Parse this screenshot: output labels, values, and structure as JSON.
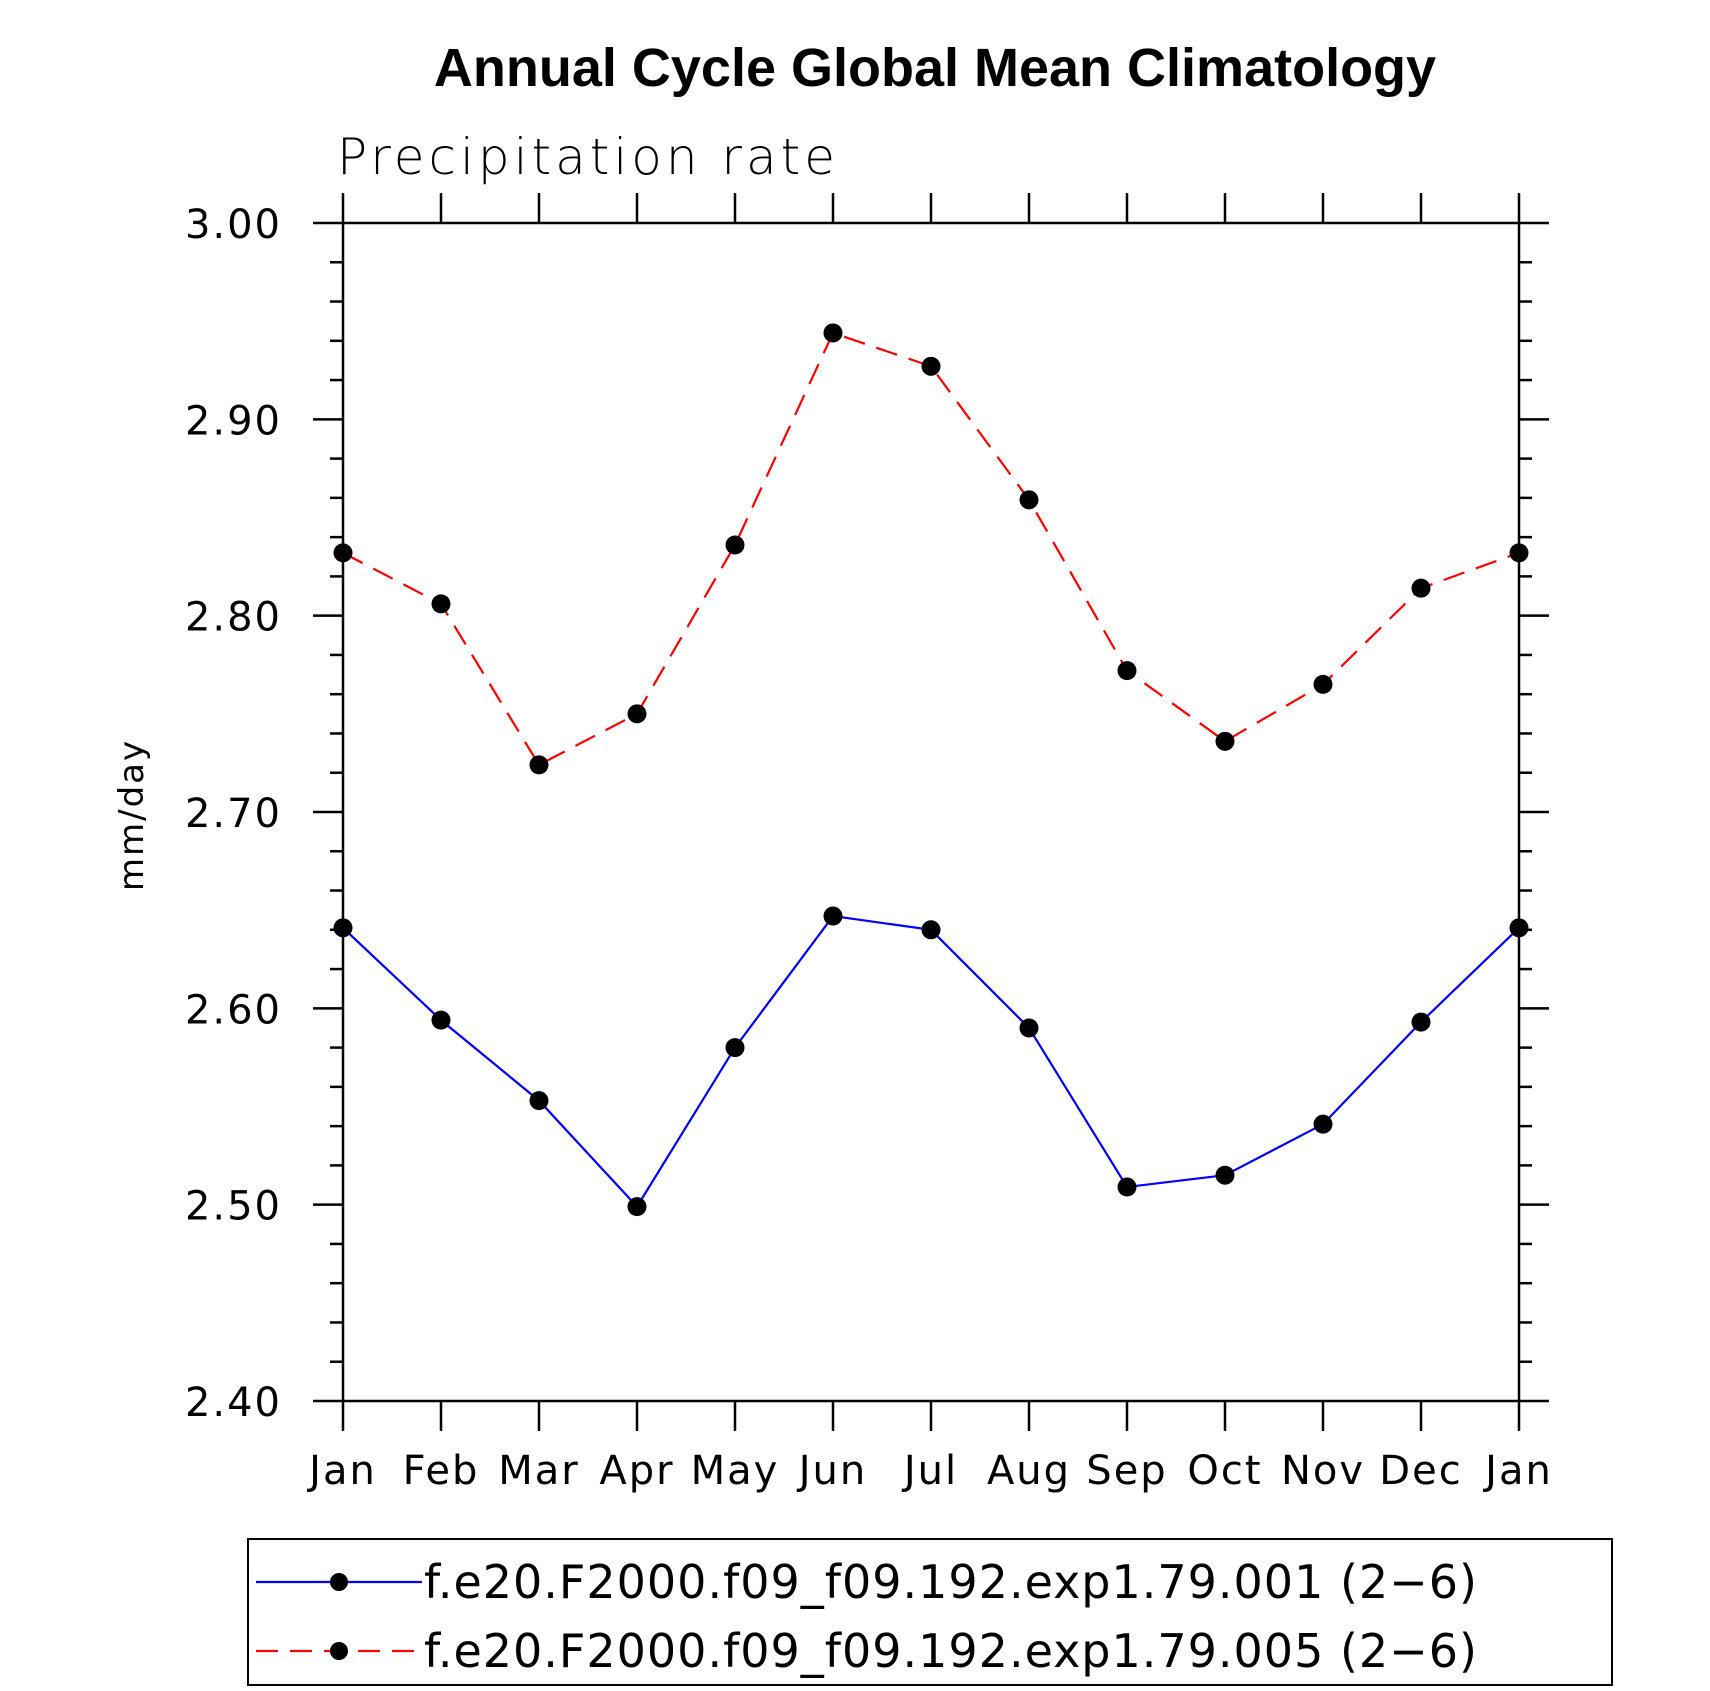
{
  "chart_data": {
    "type": "line",
    "title": "Annual Cycle Global Mean Climatology",
    "subtitle": "Precipitation rate",
    "xlabel": "",
    "ylabel": "mm/day",
    "categories": [
      "Jan",
      "Feb",
      "Mar",
      "Apr",
      "May",
      "Jun",
      "Jul",
      "Aug",
      "Sep",
      "Oct",
      "Nov",
      "Dec",
      "Jan"
    ],
    "ylim": [
      2.4,
      3.0
    ],
    "yticks": [
      "2.40",
      "2.50",
      "2.60",
      "2.70",
      "2.80",
      "2.90",
      "3.00"
    ],
    "grid": false,
    "legend_position": "bottom",
    "series": [
      {
        "name": "f.e20.F2000.f09_f09.192.exp1.79.001 (2−6)",
        "color": "#0000ff",
        "dash": "solid",
        "marker": "filled-circle",
        "values": [
          2.641,
          2.594,
          2.553,
          2.499,
          2.58,
          2.647,
          2.64,
          2.59,
          2.509,
          2.515,
          2.541,
          2.593,
          2.641
        ]
      },
      {
        "name": "f.e20.F2000.f09_f09.192.exp1.79.005 (2−6)",
        "color": "#ff0000",
        "dash": "dashed",
        "marker": "filled-circle",
        "values": [
          2.832,
          2.806,
          2.724,
          2.75,
          2.836,
          2.944,
          2.927,
          2.859,
          2.772,
          2.736,
          2.765,
          2.814,
          2.832
        ]
      }
    ]
  }
}
